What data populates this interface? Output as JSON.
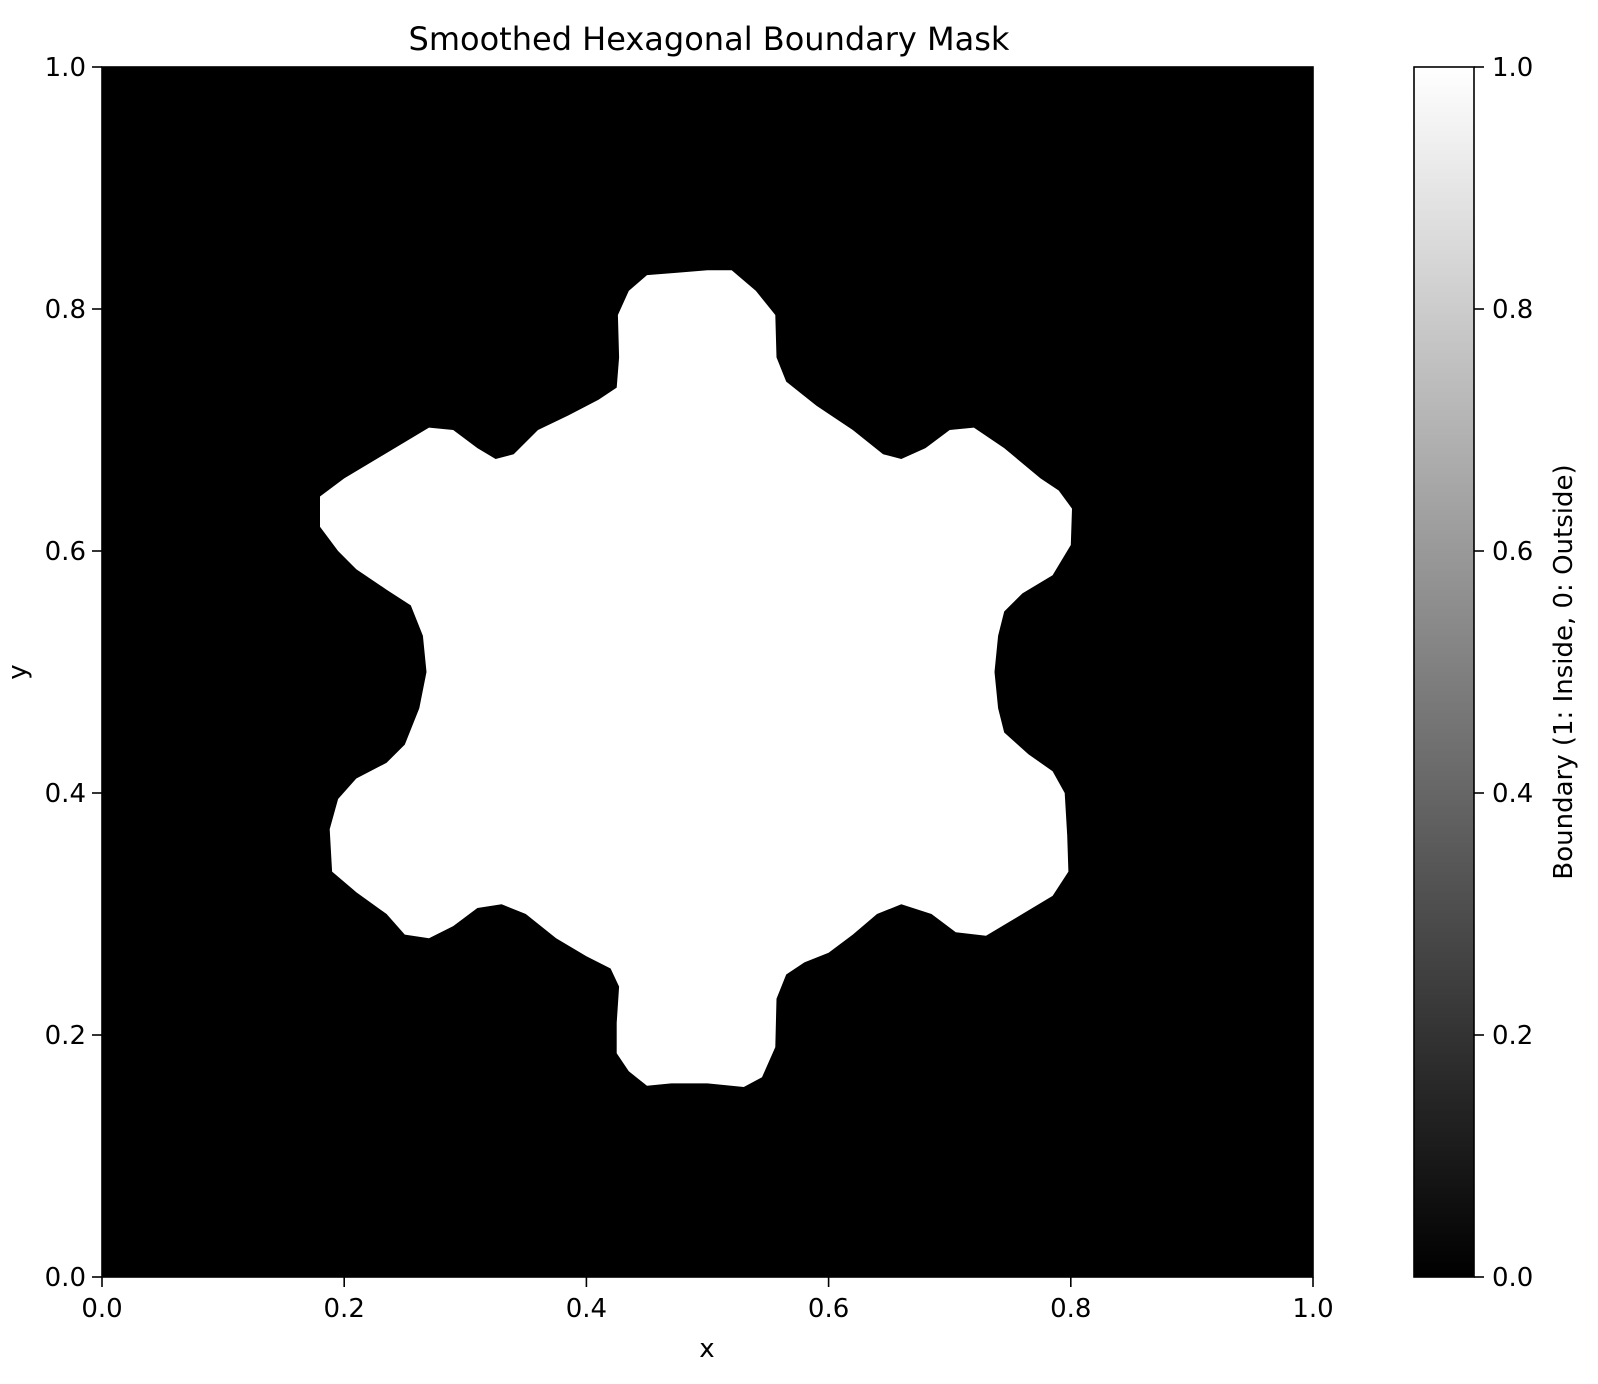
{
  "chart_data": {
    "type": "heatmap",
    "title": "Smoothed Hexagonal Boundary Mask",
    "xlabel": "x",
    "ylabel": "y",
    "xlim": [
      0.0,
      1.0
    ],
    "ylim": [
      0.0,
      1.0
    ],
    "xticks": [
      "0.0",
      "0.2",
      "0.4",
      "0.6",
      "0.8",
      "1.0"
    ],
    "yticks": [
      "0.0",
      "0.2",
      "0.4",
      "0.6",
      "0.8",
      "1.0"
    ],
    "colormap": "gray",
    "colors": {
      "inside": "#ffffff",
      "outside": "#000000"
    },
    "colorbar": {
      "label": "Boundary (1: Inside, 0: Outside)",
      "range": [
        0.0,
        1.0
      ],
      "ticks": [
        "0.0",
        "0.2",
        "0.4",
        "0.6",
        "0.8",
        "1.0"
      ]
    },
    "mask_boundary": [
      [
        0.5,
        0.832
      ],
      [
        0.52,
        0.832
      ],
      [
        0.54,
        0.815
      ],
      [
        0.556,
        0.795
      ],
      [
        0.557,
        0.76
      ],
      [
        0.565,
        0.74
      ],
      [
        0.59,
        0.72
      ],
      [
        0.62,
        0.7
      ],
      [
        0.645,
        0.68
      ],
      [
        0.66,
        0.676
      ],
      [
        0.68,
        0.685
      ],
      [
        0.7,
        0.7
      ],
      [
        0.72,
        0.702
      ],
      [
        0.745,
        0.685
      ],
      [
        0.775,
        0.66
      ],
      [
        0.79,
        0.65
      ],
      [
        0.801,
        0.635
      ],
      [
        0.8,
        0.605
      ],
      [
        0.785,
        0.58
      ],
      [
        0.76,
        0.565
      ],
      [
        0.745,
        0.55
      ],
      [
        0.74,
        0.53
      ],
      [
        0.737,
        0.5
      ],
      [
        0.74,
        0.47
      ],
      [
        0.745,
        0.45
      ],
      [
        0.765,
        0.432
      ],
      [
        0.785,
        0.418
      ],
      [
        0.795,
        0.4
      ],
      [
        0.797,
        0.365
      ],
      [
        0.798,
        0.335
      ],
      [
        0.785,
        0.315
      ],
      [
        0.76,
        0.3
      ],
      [
        0.73,
        0.282
      ],
      [
        0.705,
        0.285
      ],
      [
        0.685,
        0.3
      ],
      [
        0.66,
        0.308
      ],
      [
        0.64,
        0.3
      ],
      [
        0.62,
        0.283
      ],
      [
        0.6,
        0.268
      ],
      [
        0.58,
        0.26
      ],
      [
        0.565,
        0.25
      ],
      [
        0.557,
        0.23
      ],
      [
        0.556,
        0.19
      ],
      [
        0.545,
        0.165
      ],
      [
        0.53,
        0.157
      ],
      [
        0.5,
        0.16
      ],
      [
        0.47,
        0.16
      ],
      [
        0.45,
        0.158
      ],
      [
        0.435,
        0.17
      ],
      [
        0.425,
        0.185
      ],
      [
        0.425,
        0.21
      ],
      [
        0.427,
        0.24
      ],
      [
        0.42,
        0.255
      ],
      [
        0.4,
        0.265
      ],
      [
        0.375,
        0.28
      ],
      [
        0.35,
        0.3
      ],
      [
        0.33,
        0.308
      ],
      [
        0.31,
        0.305
      ],
      [
        0.29,
        0.29
      ],
      [
        0.27,
        0.28
      ],
      [
        0.25,
        0.283
      ],
      [
        0.235,
        0.3
      ],
      [
        0.21,
        0.318
      ],
      [
        0.19,
        0.335
      ],
      [
        0.188,
        0.37
      ],
      [
        0.195,
        0.395
      ],
      [
        0.21,
        0.412
      ],
      [
        0.235,
        0.425
      ],
      [
        0.25,
        0.44
      ],
      [
        0.262,
        0.47
      ],
      [
        0.268,
        0.5
      ],
      [
        0.265,
        0.53
      ],
      [
        0.255,
        0.555
      ],
      [
        0.235,
        0.568
      ],
      [
        0.21,
        0.585
      ],
      [
        0.195,
        0.6
      ],
      [
        0.18,
        0.62
      ],
      [
        0.18,
        0.645
      ],
      [
        0.2,
        0.66
      ],
      [
        0.225,
        0.675
      ],
      [
        0.25,
        0.69
      ],
      [
        0.27,
        0.702
      ],
      [
        0.29,
        0.7
      ],
      [
        0.31,
        0.685
      ],
      [
        0.325,
        0.676
      ],
      [
        0.34,
        0.68
      ],
      [
        0.36,
        0.7
      ],
      [
        0.385,
        0.712
      ],
      [
        0.41,
        0.725
      ],
      [
        0.425,
        0.735
      ],
      [
        0.427,
        0.76
      ],
      [
        0.426,
        0.795
      ],
      [
        0.435,
        0.815
      ],
      [
        0.45,
        0.828
      ],
      [
        0.475,
        0.83
      ]
    ]
  }
}
